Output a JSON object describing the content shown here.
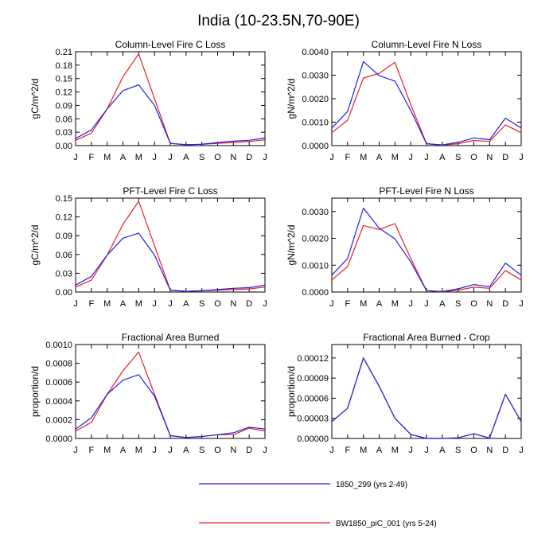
{
  "figure": {
    "title": "India (10-23.5N,70-90E)",
    "legend": [
      {
        "label": "1850_299 (yrs 2-49)",
        "color": "#2020e6"
      },
      {
        "label": "BW1850_piC_001 (yrs 5-24)",
        "color": "#e62020"
      }
    ]
  },
  "chart_data": [
    {
      "type": "line",
      "title": "Column-Level Fire C Loss",
      "ylabel": "gC/m^2/d",
      "categories": [
        "J",
        "F",
        "M",
        "A",
        "M",
        "J",
        "J",
        "A",
        "S",
        "O",
        "N",
        "D",
        "J"
      ],
      "ylim": [
        0,
        0.21
      ],
      "yticks": [
        "0.00",
        "0.03",
        "0.06",
        "0.09",
        "0.12",
        "0.15",
        "0.18",
        "0.21"
      ],
      "series": [
        {
          "name": "1850_299 (yrs 2-49)",
          "values": [
            0.016,
            0.035,
            0.082,
            0.123,
            0.136,
            0.09,
            0.005,
            0.002,
            0.003,
            0.007,
            0.01,
            0.012,
            0.017
          ]
        },
        {
          "name": "BW1850_piC_001 (yrs 5-24)",
          "values": [
            0.012,
            0.028,
            0.082,
            0.154,
            0.205,
            0.105,
            0.005,
            0.002,
            0.003,
            0.005,
            0.007,
            0.009,
            0.013
          ]
        }
      ]
    },
    {
      "type": "line",
      "title": "Column-Level Fire N Loss",
      "ylabel": "gN/m^2/d",
      "categories": [
        "J",
        "F",
        "M",
        "A",
        "M",
        "J",
        "J",
        "A",
        "S",
        "O",
        "N",
        "D",
        "J"
      ],
      "ylim": [
        0,
        0.004
      ],
      "yticks": [
        "0.0000",
        "0.0010",
        "0.0020",
        "0.0030",
        "0.0040"
      ],
      "series": [
        {
          "name": "1850_299 (yrs 2-49)",
          "values": [
            0.00075,
            0.00145,
            0.00358,
            0.00298,
            0.00275,
            0.0015,
            8e-05,
            3e-05,
            0.00014,
            0.00033,
            0.00025,
            0.00117,
            0.00075
          ]
        },
        {
          "name": "BW1850_piC_001 (yrs 5-24)",
          "values": [
            0.00055,
            0.00108,
            0.00288,
            0.00308,
            0.00355,
            0.00175,
            8e-05,
            2e-05,
            8e-05,
            0.00022,
            0.00018,
            0.00088,
            0.00055
          ]
        }
      ]
    },
    {
      "type": "line",
      "title": "PFT-Level Fire C Loss",
      "ylabel": "gC/m^2/d",
      "categories": [
        "J",
        "F",
        "M",
        "A",
        "M",
        "J",
        "J",
        "A",
        "S",
        "O",
        "N",
        "D",
        "J"
      ],
      "ylim": [
        0,
        0.15
      ],
      "yticks": [
        "0.00",
        "0.03",
        "0.06",
        "0.09",
        "0.12",
        "0.15"
      ],
      "series": [
        {
          "name": "1850_299 (yrs 2-49)",
          "values": [
            0.011,
            0.025,
            0.059,
            0.086,
            0.094,
            0.059,
            0.003,
            0.001,
            0.002,
            0.004,
            0.006,
            0.007,
            0.011
          ]
        },
        {
          "name": "BW1850_piC_001 (yrs 5-24)",
          "values": [
            0.008,
            0.019,
            0.059,
            0.108,
            0.145,
            0.074,
            0.003,
            0.001,
            0.002,
            0.003,
            0.004,
            0.005,
            0.008
          ]
        }
      ]
    },
    {
      "type": "line",
      "title": "PFT-Level Fire N Loss",
      "ylabel": "gN/m^2/d",
      "categories": [
        "J",
        "F",
        "M",
        "A",
        "M",
        "J",
        "J",
        "A",
        "S",
        "O",
        "N",
        "D",
        "J"
      ],
      "ylim": [
        0,
        0.0035
      ],
      "yticks": [
        "0.0000",
        "0.0010",
        "0.0020",
        "0.0030"
      ],
      "series": [
        {
          "name": "1850_299 (yrs 2-49)",
          "values": [
            0.00063,
            0.00125,
            0.00313,
            0.00238,
            0.00198,
            0.00112,
            5e-05,
            2e-05,
            0.00012,
            0.00028,
            0.0002,
            0.00108,
            0.00063
          ]
        },
        {
          "name": "BW1850_piC_001 (yrs 5-24)",
          "values": [
            0.00045,
            0.00095,
            0.00248,
            0.00233,
            0.00255,
            0.00125,
            5e-05,
            1e-05,
            7e-05,
            0.00018,
            0.00014,
            0.0008,
            0.00045
          ]
        }
      ]
    },
    {
      "type": "line",
      "title": "Fractional Area Burned",
      "ylabel": "proportion/d",
      "categories": [
        "J",
        "F",
        "M",
        "A",
        "M",
        "J",
        "J",
        "A",
        "S",
        "O",
        "N",
        "D",
        "J"
      ],
      "ylim": [
        0,
        0.001
      ],
      "yticks": [
        "0.0000",
        "0.0002",
        "0.0004",
        "0.0006",
        "0.0008",
        "0.0010"
      ],
      "series": [
        {
          "name": "1850_299 (yrs 2-49)",
          "values": [
            0.0001,
            0.00022,
            0.00047,
            0.00062,
            0.00068,
            0.00045,
            3e-05,
            1e-05,
            2e-05,
            4e-05,
            6e-05,
            0.00012,
            0.0001
          ]
        },
        {
          "name": "BW1850_piC_001 (yrs 5-24)",
          "values": [
            8e-05,
            0.00017,
            0.00047,
            0.00072,
            0.00092,
            0.00047,
            3e-05,
            1e-05,
            2e-05,
            4e-05,
            4e-05,
            0.00011,
            8e-05
          ]
        }
      ]
    },
    {
      "type": "line",
      "title": "Fractional Area Burned - Crop",
      "ylabel": "proportion/d",
      "categories": [
        "J",
        "F",
        "M",
        "A",
        "M",
        "J",
        "J",
        "A",
        "S",
        "O",
        "N",
        "D",
        "J"
      ],
      "ylim": [
        0,
        0.00014
      ],
      "yticks": [
        "0.00000",
        "0.00003",
        "0.00006",
        "0.00009",
        "0.00012"
      ],
      "series": [
        {
          "name": "1850_299 (yrs 2-49)",
          "values": [
            2.5e-05,
            4.5e-05,
            0.00012,
            7.8e-05,
            3e-05,
            6e-06,
            0.0,
            0.0,
            1e-06,
            7e-06,
            5e-07,
            6.6e-05,
            2.5e-05
          ]
        },
        {
          "name": "BW1850_piC_001 (yrs 5-24)",
          "values": [
            2.5e-05,
            4.5e-05,
            0.00012,
            7.8e-05,
            3e-05,
            6e-06,
            0.0,
            0.0,
            1e-06,
            7e-06,
            5e-07,
            6.6e-05,
            2.5e-05
          ]
        }
      ]
    }
  ]
}
